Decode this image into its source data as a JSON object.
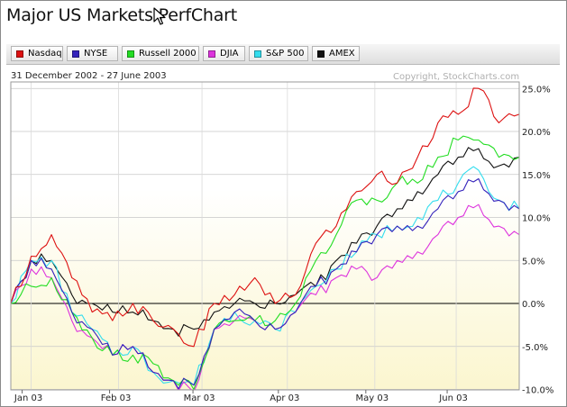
{
  "title": "Major US Markets PerfChart",
  "date_range": "31 December 2002 - 27 June 2003",
  "copyright": "Copyright, StockCharts.com",
  "legend": [
    {
      "label": "Nasdaq",
      "color": "#dd1111"
    },
    {
      "label": "NYSE",
      "color": "#3322bb"
    },
    {
      "label": "Russell 2000",
      "color": "#22dd22"
    },
    {
      "label": "DJIA",
      "color": "#dd33dd"
    },
    {
      "label": "S&P 500",
      "color": "#33ddee"
    },
    {
      "label": "AMEX",
      "color": "#111111"
    }
  ],
  "chart_data": {
    "type": "line",
    "x": [
      0,
      1,
      2,
      3,
      4,
      5,
      6,
      7,
      8,
      9,
      10,
      11,
      12,
      13,
      14,
      15,
      16,
      17,
      18,
      19,
      20,
      21,
      22,
      23,
      24,
      25
    ],
    "x_tick_labels": [
      "Jan 03",
      "Feb 03",
      "Mar 03",
      "Apr 03",
      "May 03",
      "Jun 03"
    ],
    "x_tick_positions": [
      1,
      5.3,
      9.4,
      13.6,
      17.9,
      21.9
    ],
    "y_tick_labels": [
      "25.0%",
      "20.0%",
      "15.0%",
      "10.0%",
      "5.0%",
      "0.0%",
      "-5.0%",
      "-10.0%"
    ],
    "ylim": [
      -10.5,
      25.5
    ],
    "ylabel": "",
    "xlabel": "",
    "grid": true,
    "series": [
      {
        "name": "Nasdaq",
        "values": [
          0,
          5.5,
          8,
          3,
          -1,
          -2,
          0,
          -2,
          -3,
          -5,
          0,
          1,
          3,
          0,
          1,
          7,
          9,
          13,
          15,
          14,
          17,
          21,
          22,
          25,
          21,
          22
        ]
      },
      {
        "name": "NYSE",
        "values": [
          0,
          5,
          4,
          -1,
          -3,
          -6,
          -5,
          -8,
          -9,
          -9.5,
          -3,
          -1,
          -2,
          -3,
          -1,
          2,
          4,
          6,
          8,
          9,
          9,
          11,
          13,
          14.5,
          12,
          11
        ]
      },
      {
        "name": "Russell 2000",
        "values": [
          0,
          2,
          3,
          -1,
          -4,
          -6,
          -6,
          -7,
          -9,
          -10,
          -3,
          -2,
          -2,
          -2,
          0,
          5,
          8,
          12,
          12,
          14,
          14,
          17,
          19,
          19,
          17,
          17
        ]
      },
      {
        "name": "DJIA",
        "values": [
          0,
          4,
          3,
          -2,
          -4,
          -6,
          -5,
          -8,
          -9,
          -10.3,
          -3,
          -2,
          -2,
          -3,
          -1,
          1,
          3,
          4,
          3,
          5,
          6,
          8,
          10,
          11.5,
          9,
          8
        ]
      },
      {
        "name": "S&P 500",
        "values": [
          0,
          5,
          5,
          -1,
          -3,
          -6,
          -5,
          -8,
          -9,
          -9.5,
          -3,
          -1,
          -2,
          -3,
          -1,
          2,
          4,
          6,
          8,
          9,
          10,
          12,
          14,
          15.5,
          12,
          11
        ]
      },
      {
        "name": "AMEX",
        "values": [
          0,
          5,
          5,
          1,
          0,
          -1,
          -1,
          -2,
          -3,
          -3,
          -1,
          0,
          0,
          0,
          1,
          2,
          5,
          7,
          9,
          11,
          13,
          15,
          17,
          18,
          16,
          17
        ]
      }
    ]
  }
}
